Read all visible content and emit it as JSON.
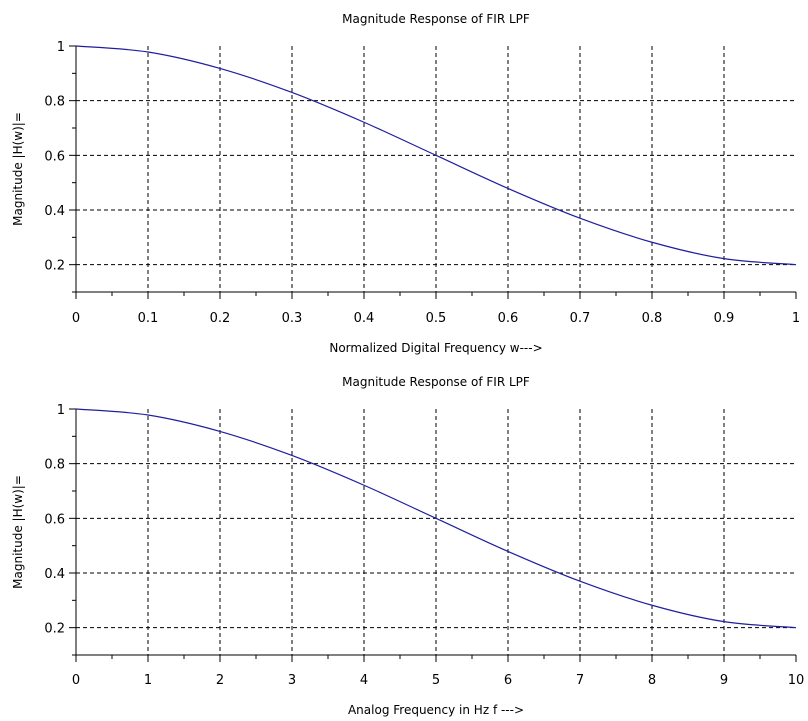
{
  "chart_data": [
    {
      "type": "line",
      "title": "Magnitude Response of FIR LPF",
      "xlabel": "Normalized Digital Frequency w--->",
      "ylabel": "Magnitude |H(w)|=",
      "xlim": [
        0,
        1
      ],
      "ylim": [
        0.1,
        1
      ],
      "grid": true,
      "xticks": [
        0,
        0.1,
        0.2,
        0.3,
        0.4,
        0.5,
        0.6,
        0.7,
        0.8,
        0.9,
        1
      ],
      "xtick_labels": [
        "0",
        "0.1",
        "0.2",
        "0.3",
        "0.4",
        "0.5",
        "0.6",
        "0.7",
        "0.8",
        "0.9",
        "1"
      ],
      "yticks": [
        0.2,
        0.4,
        0.6,
        0.8,
        1
      ],
      "ytick_labels": [
        "0.2",
        "0.4",
        "0.6",
        "0.8",
        "1"
      ],
      "series": [
        {
          "color": "#1f1f9e",
          "x": [
            0,
            0.1,
            0.2,
            0.3,
            0.4,
            0.5,
            0.6,
            0.7,
            0.8,
            0.9,
            1
          ],
          "y": [
            1.0,
            0.978,
            0.918,
            0.83,
            0.721,
            0.6,
            0.479,
            0.37,
            0.282,
            0.222,
            0.2
          ]
        }
      ]
    },
    {
      "type": "line",
      "title": "Magnitude Response of FIR LPF",
      "xlabel": "Analog Frequency in Hz f --->",
      "ylabel": "Magnitude |H(w)|=",
      "xlim": [
        0,
        10
      ],
      "ylim": [
        0.1,
        1
      ],
      "grid": true,
      "xticks": [
        0,
        1,
        2,
        3,
        4,
        5,
        6,
        7,
        8,
        9,
        10
      ],
      "xtick_labels": [
        "0",
        "1",
        "2",
        "3",
        "4",
        "5",
        "6",
        "7",
        "8",
        "9",
        "10"
      ],
      "yticks": [
        0.2,
        0.4,
        0.6,
        0.8,
        1
      ],
      "ytick_labels": [
        "0.2",
        "0.4",
        "0.6",
        "0.8",
        "1"
      ],
      "series": [
        {
          "color": "#1f1f9e",
          "x": [
            0,
            1,
            2,
            3,
            4,
            5,
            6,
            7,
            8,
            9,
            10
          ],
          "y": [
            1.0,
            0.978,
            0.918,
            0.83,
            0.721,
            0.6,
            0.479,
            0.37,
            0.282,
            0.222,
            0.2
          ]
        }
      ]
    }
  ]
}
